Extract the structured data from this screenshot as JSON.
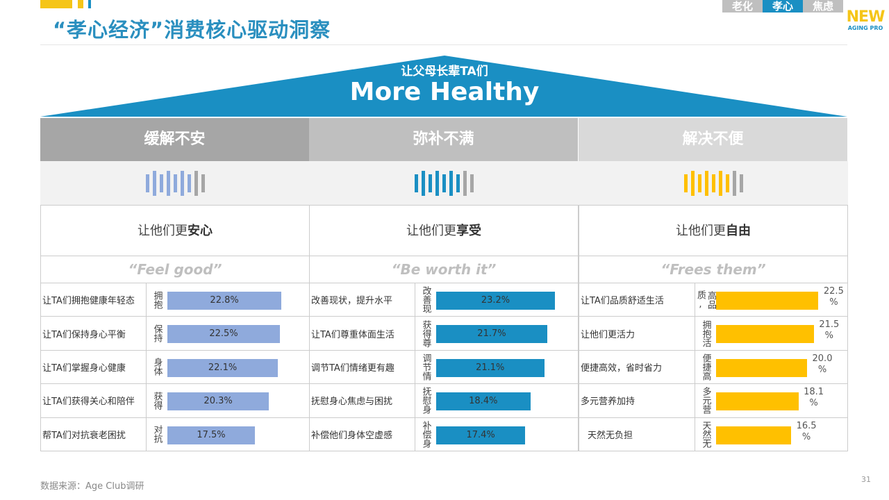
{
  "header": {
    "title": "“孝心经济”消费核心驱动洞察",
    "tabs": [
      {
        "label": "老化",
        "active": false
      },
      {
        "label": "孝心",
        "active": true
      },
      {
        "label": "焦虑",
        "active": false
      }
    ],
    "logo": {
      "main": "NEW",
      "sub": "AGING PRO"
    }
  },
  "roof": {
    "subtitle": "让父母长辈TA们",
    "title": "More Healthy",
    "color": "#1a8fc3"
  },
  "colors": {
    "col1_bar": "#8faadc",
    "col2_bar": "#1a8fc3",
    "col3_bar": "#ffc000",
    "grey_bar": "#a6a6a6",
    "hdr": [
      "#a6a6a6",
      "#bfbfbf",
      "#d9d9d9"
    ]
  },
  "columns": [
    {
      "header": "缓解不安",
      "subtitle_prefix": "让他们更",
      "subtitle_bold": "安心",
      "quote": "“Feel good”"
    },
    {
      "header": "弥补不满",
      "subtitle_prefix": "让他们更",
      "subtitle_bold": "享受",
      "quote": "“Be worth it”"
    },
    {
      "header": "解决不便",
      "subtitle_prefix": "让他们更",
      "subtitle_bold": "自由",
      "quote": "“Frees them”"
    }
  ],
  "chart_data": [
    {
      "type": "bar",
      "orientation": "horizontal",
      "categories": [
        "让TA们拥抱健康年轻态",
        "让TA们保持身心平衡",
        "让TA们掌握身心健康",
        "让TA们获得关心和陪伴",
        "帮TA们对抗衰老困扰"
      ],
      "axis_labels": [
        "拥抱",
        "保持",
        "身体",
        "获得",
        "对抗"
      ],
      "values": [
        22.8,
        22.5,
        22.1,
        20.3,
        17.5
      ],
      "value_labels": [
        "22.8%",
        "22.5%",
        "22.1%",
        "20.3%",
        "17.5%"
      ]
    },
    {
      "type": "bar",
      "orientation": "horizontal",
      "categories": [
        "改善现状，提升水平",
        "让TA们尊重体面生活",
        "调节TA们情绪更有趣",
        "抚慰身心焦虑与困扰",
        "补偿他们身体空虚感"
      ],
      "axis_labels": [
        "改善现",
        "获得尊",
        "调节情",
        "抚慰身",
        "补偿身"
      ],
      "values": [
        23.2,
        21.7,
        21.1,
        18.4,
        17.4
      ],
      "value_labels": [
        "23.2%",
        "21.7%",
        "21.1%",
        "18.4%",
        "17.4%"
      ]
    },
    {
      "type": "bar",
      "orientation": "horizontal",
      "categories": [
        "让TA们品质舒适生活",
        "让他们更活力",
        "便捷高效，省时省力",
        "多元营养加持",
        "天然无负担"
      ],
      "axis_labels": [
        "高品质,",
        "拥抱活",
        "便捷高",
        "多元营",
        "天然无"
      ],
      "values": [
        22.5,
        21.5,
        20.0,
        18.1,
        16.5
      ],
      "value_labels": [
        "22.5 %",
        "21.5 %",
        "20.0 %",
        "18.1 %",
        "16.5 %"
      ]
    }
  ],
  "footer": {
    "source": "数据来源：Age Club调研",
    "page": "31"
  }
}
